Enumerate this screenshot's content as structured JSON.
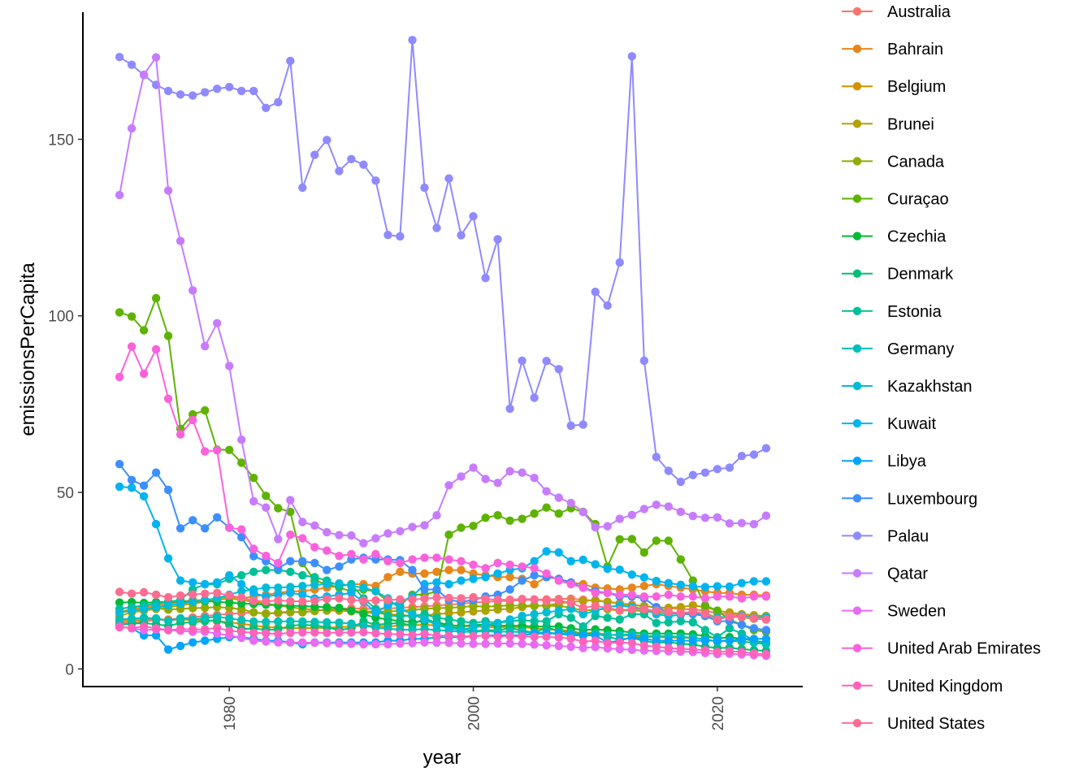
{
  "chart_data": {
    "type": "line",
    "xlabel": "year",
    "ylabel": "emissionsPerCapita",
    "xlim": [
      1968,
      2027
    ],
    "ylim": [
      -5,
      186
    ],
    "xticks": [
      1980,
      2000,
      2020
    ],
    "xtick_labels": [
      "1980",
      "2000",
      "2020"
    ],
    "yticks": [
      0,
      50,
      100,
      150
    ],
    "ytick_labels": [
      "0",
      "50",
      "100",
      "150"
    ],
    "grid": false,
    "legend": "right",
    "x": [
      1971,
      1972,
      1973,
      1974,
      1975,
      1976,
      1977,
      1978,
      1979,
      1980,
      1981,
      1982,
      1983,
      1984,
      1985,
      1986,
      1987,
      1988,
      1989,
      1990,
      1991,
      1992,
      1993,
      1994,
      1995,
      1996,
      1997,
      1998,
      1999,
      2000,
      2001,
      2002,
      2003,
      2004,
      2005,
      2006,
      2007,
      2008,
      2009,
      2010,
      2011,
      2012,
      2013,
      2014,
      2015,
      2016,
      2017,
      2018,
      2019,
      2020,
      2021,
      2022,
      2023,
      2024
    ],
    "series": [
      {
        "name": "Australia",
        "color": "#F8766D",
        "values": [
          13,
          13.2,
          13.5,
          13.8,
          14,
          14.3,
          14.6,
          15,
          15.3,
          15.6,
          15.8,
          16,
          15.7,
          15.8,
          16,
          16.2,
          16.4,
          16.8,
          17,
          17.2,
          17,
          17,
          17.1,
          17.3,
          17.5,
          17.7,
          18,
          18.2,
          18.5,
          18.8,
          19,
          19.2,
          19.3,
          19.5,
          19.6,
          19.7,
          19.8,
          19.9,
          19.6,
          19.3,
          19,
          18.6,
          18.2,
          17.8,
          17.4,
          17.2,
          17,
          16.8,
          16.5,
          15.8,
          15.5,
          15.2,
          15,
          14.8
        ]
      },
      {
        "name": "Bahrain",
        "color": "#E7861B",
        "values": [
          16,
          17,
          17.5,
          18,
          18.5,
          19,
          19.5,
          19.5,
          20,
          20.5,
          20,
          20.5,
          21,
          21.5,
          22,
          22,
          22.5,
          23,
          23.5,
          24,
          24,
          23.5,
          26,
          27.5,
          27,
          27,
          27.5,
          28,
          28,
          27,
          26.5,
          26,
          26,
          25.5,
          24,
          26,
          25.5,
          24.5,
          24,
          23,
          22.8,
          22.5,
          23,
          23.5,
          24,
          23.5,
          23,
          22.5,
          22,
          21.5,
          21.5,
          21,
          21,
          20.8
        ]
      },
      {
        "name": "Belgium",
        "color": "#D39200",
        "values": [
          13.5,
          13.7,
          14,
          14.2,
          13.8,
          14,
          13.8,
          13.9,
          13.5,
          13.2,
          12.8,
          12.3,
          11.8,
          11.7,
          11.5,
          11.6,
          11.5,
          11.7,
          11.8,
          12,
          12.3,
          12.2,
          12,
          12.3,
          12.4,
          12.5,
          12.3,
          12.4,
          12.2,
          12,
          11.9,
          11.8,
          11.9,
          11.8,
          11.5,
          11.2,
          11,
          10.8,
          10,
          10.3,
          9.7,
          9.5,
          9.4,
          9,
          9.1,
          8.9,
          8.8,
          8.8,
          8.4,
          7.8,
          8.1,
          7.6,
          7.5,
          7.3
        ]
      },
      {
        "name": "Brunei",
        "color": "#B79F00",
        "values": [
          15,
          16,
          16.5,
          17,
          17.5,
          18,
          18.5,
          19,
          19.5,
          20,
          19.5,
          19,
          18.5,
          18,
          17.5,
          17,
          16.8,
          16.5,
          16.5,
          16.3,
          16,
          15.8,
          15.5,
          15.3,
          15,
          15.2,
          15.5,
          15.8,
          16,
          16.3,
          16.5,
          16.8,
          17,
          17.5,
          17.8,
          18,
          18.5,
          19,
          19.2,
          19.5,
          19,
          18.5,
          18,
          17.8,
          17.5,
          17.3,
          17.5,
          18,
          17.5,
          16.5,
          16,
          15.5,
          15.2,
          15
        ]
      },
      {
        "name": "Canada",
        "color": "#93AA00",
        "values": [
          16,
          16.5,
          17,
          17.2,
          16.8,
          17,
          17.2,
          17.3,
          17.5,
          17.3,
          16.9,
          16,
          15.6,
          16,
          16.2,
          16,
          16.4,
          16.8,
          17,
          16.5,
          16.2,
          16.3,
          16.2,
          16.5,
          16.7,
          17,
          17.2,
          17.3,
          17.5,
          17.8,
          17.6,
          17.8,
          18,
          17.9,
          18,
          17.8,
          17.9,
          17.3,
          16.5,
          16.8,
          16.9,
          16.5,
          16.6,
          16.3,
          16,
          15.6,
          15.8,
          16,
          15.7,
          14.5,
          14.8,
          14.6,
          14.2,
          14
        ]
      },
      {
        "name": "Curaçao",
        "color": "#5EB300",
        "values": [
          101,
          99.8,
          95.9,
          105,
          94.3,
          68,
          72.1,
          73.2,
          62.1,
          62,
          58.4,
          54.1,
          49,
          45.5,
          44.5,
          30,
          25,
          24,
          23,
          22,
          22.5,
          22,
          19,
          18,
          21,
          21,
          22,
          38,
          40,
          40.5,
          42.8,
          43.5,
          42,
          42.5,
          44,
          45.7,
          44,
          45.5,
          44.5,
          41,
          29,
          36.7,
          36.8,
          33,
          36.3,
          36.3,
          31,
          25,
          18,
          16.5,
          14,
          12.5,
          11,
          10.5
        ]
      },
      {
        "name": "Czechia",
        "color": "#00BA38",
        "values": [
          18.8,
          18.9,
          18.7,
          18.9,
          19,
          19.1,
          19,
          19.2,
          19,
          18.8,
          18.5,
          18.4,
          18.2,
          18,
          17.9,
          17.8,
          17.6,
          17.5,
          17.3,
          16.5,
          15.5,
          14.5,
          14,
          13.5,
          13.3,
          13.5,
          13.2,
          12.5,
          12,
          12.5,
          12.5,
          12.2,
          12.3,
          12.2,
          12,
          12,
          12,
          11.5,
          11,
          11.2,
          11,
          10.7,
          10.3,
          10,
          10,
          10,
          10,
          9.8,
          9.3,
          8.6,
          9,
          8.5,
          8,
          7.5
        ]
      },
      {
        "name": "Denmark",
        "color": "#00BF74",
        "values": [
          12.5,
          12.8,
          13,
          12.6,
          12.2,
          13,
          13.2,
          13.5,
          13.8,
          12.5,
          11.2,
          11.5,
          11,
          11.2,
          12.2,
          12.5,
          12.3,
          11.8,
          11,
          11.5,
          13.5,
          12.5,
          12.8,
          13,
          12.3,
          14.5,
          12.8,
          12,
          11.4,
          10.7,
          11,
          10.9,
          11.6,
          10.9,
          10.2,
          11.7,
          10.8,
          10.3,
          9.9,
          10.1,
          9.1,
          8.3,
          8.8,
          7.9,
          7.4,
          7.6,
          7.1,
          6.9,
          6.3,
          5.9,
          6,
          5.6,
          5.3,
          5.1
        ]
      },
      {
        "name": "Estonia",
        "color": "#00C097",
        "values": [
          17,
          17.5,
          18,
          18.5,
          19,
          19.5,
          22.5,
          24,
          24,
          25.5,
          26.5,
          27.5,
          28,
          28,
          27.5,
          26.5,
          26,
          25,
          23.5,
          24,
          20,
          17,
          15,
          15,
          15,
          15.5,
          14.5,
          14,
          13.5,
          13,
          13.5,
          13,
          13.5,
          13.8,
          13.5,
          13.5,
          15.5,
          14.5,
          12,
          15,
          14.5,
          14,
          15.5,
          15.5,
          13,
          13.2,
          13.5,
          13.2,
          11,
          9,
          11.5,
          10,
          8,
          7.3
        ]
      },
      {
        "name": "Germany",
        "color": "#00C0B8",
        "values": [
          14,
          14.2,
          14.5,
          14.3,
          13.6,
          14.3,
          14,
          14.4,
          14.8,
          14.3,
          13.8,
          13.4,
          13.3,
          13.4,
          13.5,
          13.4,
          13.3,
          13.2,
          13.1,
          12.8,
          12.2,
          11.7,
          11.4,
          11.1,
          11.1,
          11.3,
          11,
          10.8,
          10.5,
          10.5,
          10.7,
          10.5,
          10.6,
          10.4,
          10.2,
          10.3,
          10,
          10.1,
          9.4,
          9.8,
          9.6,
          9.7,
          9.8,
          9.3,
          9.3,
          9.3,
          9.1,
          8.8,
          8.4,
          7.7,
          8,
          7.8,
          7.4,
          7
        ]
      },
      {
        "name": "Kazakhstan",
        "color": "#00BCD6",
        "values": [
          16,
          16.5,
          17,
          17.5,
          18,
          18.5,
          19,
          19.5,
          20,
          21,
          22,
          22.5,
          23,
          23,
          23.2,
          23.5,
          23.8,
          24,
          24.2,
          23.5,
          23,
          22,
          20,
          17,
          15.5,
          14,
          12.5,
          11.5,
          11,
          11.8,
          12.5,
          13,
          14,
          15,
          15.5,
          16,
          16.5,
          17,
          15.5,
          16.5,
          17.5,
          18,
          17.5,
          17,
          15.5,
          15,
          15.3,
          16,
          15,
          14.5,
          14.8,
          15,
          14.5,
          14.7
        ]
      },
      {
        "name": "Kuwait",
        "color": "#00B4EF",
        "values": [
          51.6,
          51.3,
          48.9,
          41,
          31.3,
          25,
          24.5,
          24,
          24.5,
          26.5,
          24,
          21.5,
          20.5,
          21,
          21.5,
          21,
          20,
          20.5,
          21,
          21.5,
          19,
          16,
          18,
          19,
          20.5,
          24,
          24.5,
          24,
          25,
          25.5,
          26,
          27,
          28,
          28.5,
          30.5,
          33.3,
          33,
          30.5,
          30.9,
          29.6,
          28.4,
          28.1,
          26.7,
          25.9,
          24.9,
          24.3,
          23.8,
          23.4,
          23.2,
          23.4,
          23.3,
          24.3,
          24.8,
          24.8
        ]
      },
      {
        "name": "Libya",
        "color": "#00A5FF",
        "values": [
          12,
          11.5,
          9.5,
          9.5,
          5.5,
          6.5,
          7.5,
          8,
          8.5,
          9,
          9,
          8.5,
          8,
          8,
          7.5,
          7,
          7.5,
          7.5,
          7.5,
          7.5,
          7.5,
          7.5,
          8,
          8,
          8.5,
          8.5,
          9,
          9,
          9,
          9.2,
          9.5,
          9.5,
          9.5,
          9.5,
          10,
          10,
          10,
          9.5,
          9.5,
          9.5,
          7.5,
          8,
          9,
          8.5,
          8,
          8,
          8,
          8,
          8,
          8,
          8,
          8.5,
          8.5,
          8.5
        ]
      },
      {
        "name": "Luxembourg",
        "color": "#3C8FFF",
        "values": [
          58,
          53.5,
          51.9,
          55.6,
          50.7,
          39.8,
          42.1,
          39.8,
          42.9,
          40,
          37.3,
          31.9,
          30.5,
          28.5,
          30.5,
          30.5,
          30,
          28,
          29,
          31,
          31.5,
          31,
          31,
          30.8,
          28,
          22.5,
          22.5,
          19.5,
          19,
          19.5,
          20.5,
          21,
          22.5,
          25,
          26.5,
          26,
          25.5,
          24.5,
          23,
          22,
          21.5,
          20.5,
          20.5,
          20,
          17.5,
          16,
          15.5,
          15.5,
          15,
          13.5,
          13.5,
          12.5,
          11.5,
          11
        ]
      },
      {
        "name": "Palau",
        "color": "#8F8AFF",
        "values": [
          173.3,
          171.1,
          168.2,
          165.4,
          163.7,
          162.7,
          162.4,
          163.3,
          164.3,
          164.8,
          163.7,
          163.7,
          158.9,
          160.5,
          172.2,
          136.3,
          145.6,
          149.8,
          141,
          144.4,
          142.8,
          138.3,
          122.9,
          122.5,
          178.1,
          136.3,
          124.9,
          138.9,
          122.8,
          128.2,
          110.7,
          121.7,
          73.7,
          87.3,
          76.8,
          87.2,
          84.9,
          68.9,
          69.2,
          106.8,
          102.9,
          115.1,
          173.5,
          87.3,
          60,
          56.1,
          53,
          54.9,
          55.6,
          56.6,
          57,
          60.3,
          60.7,
          62.5
        ]
      },
      {
        "name": "Qatar",
        "color": "#C77CFF",
        "values": [
          134.2,
          153.1,
          168.3,
          173.2,
          135.5,
          121.2,
          107.2,
          91.4,
          97.9,
          85.8,
          64.9,
          47.5,
          45.7,
          36.8,
          47.8,
          41.6,
          40.6,
          38.7,
          37.9,
          37.8,
          35.6,
          37,
          38.4,
          39,
          40.2,
          40.7,
          43.5,
          52,
          54.5,
          57,
          53.8,
          52.7,
          56,
          55.6,
          54.1,
          50.3,
          48.5,
          47,
          44.4,
          40.1,
          40.4,
          42.5,
          43.6,
          45.3,
          46.5,
          46,
          44.5,
          43.3,
          42.8,
          42.9,
          41.2,
          41.3,
          41,
          43.4
        ]
      },
      {
        "name": "Sweden",
        "color": "#E76BF3",
        "values": [
          12,
          11.5,
          11,
          11.2,
          11,
          10.8,
          10.5,
          10.5,
          10,
          9.5,
          8.8,
          8,
          7.8,
          7.5,
          7.5,
          7.5,
          7.4,
          7.3,
          7.2,
          7.1,
          7,
          7,
          7,
          7.2,
          7.3,
          7.5,
          7.4,
          7.4,
          7.2,
          7.1,
          7.1,
          7.2,
          7.2,
          7.1,
          6.9,
          6.7,
          6.5,
          6.3,
          5.9,
          6.2,
          5.8,
          5.6,
          5.4,
          5.2,
          5.1,
          5,
          4.9,
          4.8,
          4.5,
          4.2,
          4.3,
          4.1,
          3.9,
          3.7
        ]
      },
      {
        "name": "United Arab Emirates",
        "color": "#FA62DB",
        "values": [
          82.7,
          91.3,
          83.6,
          90.5,
          76.5,
          66.4,
          70.5,
          61.6,
          61.9,
          40,
          39.5,
          34,
          32,
          30,
          38,
          37,
          34.5,
          33.5,
          32,
          32.5,
          31,
          32.5,
          30.5,
          30,
          31,
          31.5,
          31.5,
          31,
          30.5,
          29.5,
          28.5,
          30,
          29.5,
          29,
          28.5,
          27,
          25,
          24,
          23,
          21.5,
          21.5,
          21,
          21,
          20.5,
          20.5,
          21,
          20.5,
          20.5,
          20,
          20.5,
          20.5,
          20,
          20.5,
          20.5
        ]
      },
      {
        "name": "United Kingdom",
        "color": "#FF62BC",
        "values": [
          11.8,
          11.6,
          12,
          11.5,
          11,
          11.3,
          11.2,
          11.2,
          11.6,
          10.8,
          10.5,
          10.2,
          10.1,
          9.9,
          10.2,
          10.3,
          10.3,
          10.2,
          10.3,
          10.3,
          10.4,
          10.1,
          9.9,
          9.8,
          9.6,
          9.9,
          9.4,
          9.4,
          9.2,
          9.3,
          9.4,
          9.1,
          9.3,
          9.2,
          9.1,
          9.1,
          8.9,
          8.6,
          7.7,
          8,
          7.3,
          7.5,
          7.3,
          6.6,
          6.3,
          5.9,
          5.7,
          5.5,
          5.3,
          4.8,
          5,
          4.8,
          4.4,
          4.2
        ]
      },
      {
        "name": "United States",
        "color": "#FF6C91",
        "values": [
          21.8,
          21.3,
          21.7,
          21,
          20.3,
          20.8,
          21.1,
          21.3,
          21.5,
          20.8,
          20.2,
          19.3,
          19.1,
          19.4,
          19.2,
          19.1,
          19.3,
          19.8,
          20,
          19.5,
          19.3,
          19.4,
          19.5,
          19.7,
          19.6,
          19.9,
          20.2,
          20.1,
          20,
          20.3,
          19.8,
          19.6,
          19.6,
          19.8,
          19.7,
          19.3,
          19.4,
          18.7,
          17.3,
          17.8,
          17.3,
          16.6,
          16.9,
          16.9,
          16.5,
          16.1,
          15.8,
          16.2,
          15.6,
          14,
          14.8,
          14.8,
          14.3,
          14
        ]
      }
    ]
  }
}
